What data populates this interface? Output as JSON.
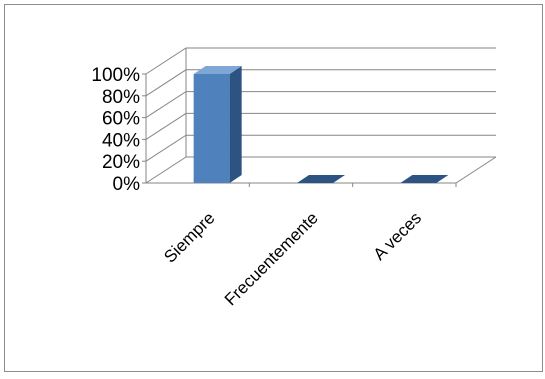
{
  "chart_data": {
    "type": "bar",
    "style": "3d-column",
    "title": "",
    "xlabel": "",
    "ylabel": "",
    "categories": [
      "Siempre",
      "Frecuentemente",
      "A veces"
    ],
    "series": [
      {
        "values": [
          100,
          0,
          0
        ]
      }
    ],
    "ylim": [
      0,
      100
    ],
    "yticks": [
      "0%",
      "20%",
      "40%",
      "60%",
      "80%",
      "100%"
    ],
    "grid": true,
    "legend": "none",
    "colors": {
      "bar_front": "#4F81BD",
      "bar_side": "#2D5382",
      "bar_top": "#7FA7D6",
      "grid": "#868686"
    }
  }
}
